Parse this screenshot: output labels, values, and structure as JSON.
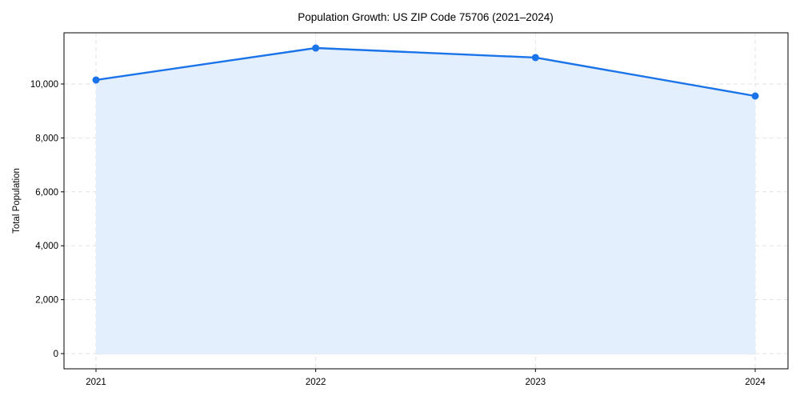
{
  "chart_data": {
    "type": "area",
    "title": "Population Growth: US ZIP Code 75706 (2021–2024)",
    "xlabel": "",
    "ylabel": "Total Population",
    "categories": [
      "2021",
      "2022",
      "2023",
      "2024"
    ],
    "series": [
      {
        "name": "Total Population",
        "values": [
          10150,
          11335,
          10980,
          9555
        ],
        "color": "#1a73e8",
        "fill": "#e3effc"
      }
    ],
    "ylim": [
      -600,
      11850
    ],
    "yticks": [
      0,
      2000,
      4000,
      6000,
      8000,
      10000
    ],
    "ytick_labels": [
      "0",
      "2,000",
      "4,000",
      "6,000",
      "8,000",
      "10,000"
    ],
    "grid": true,
    "legend": null
  }
}
